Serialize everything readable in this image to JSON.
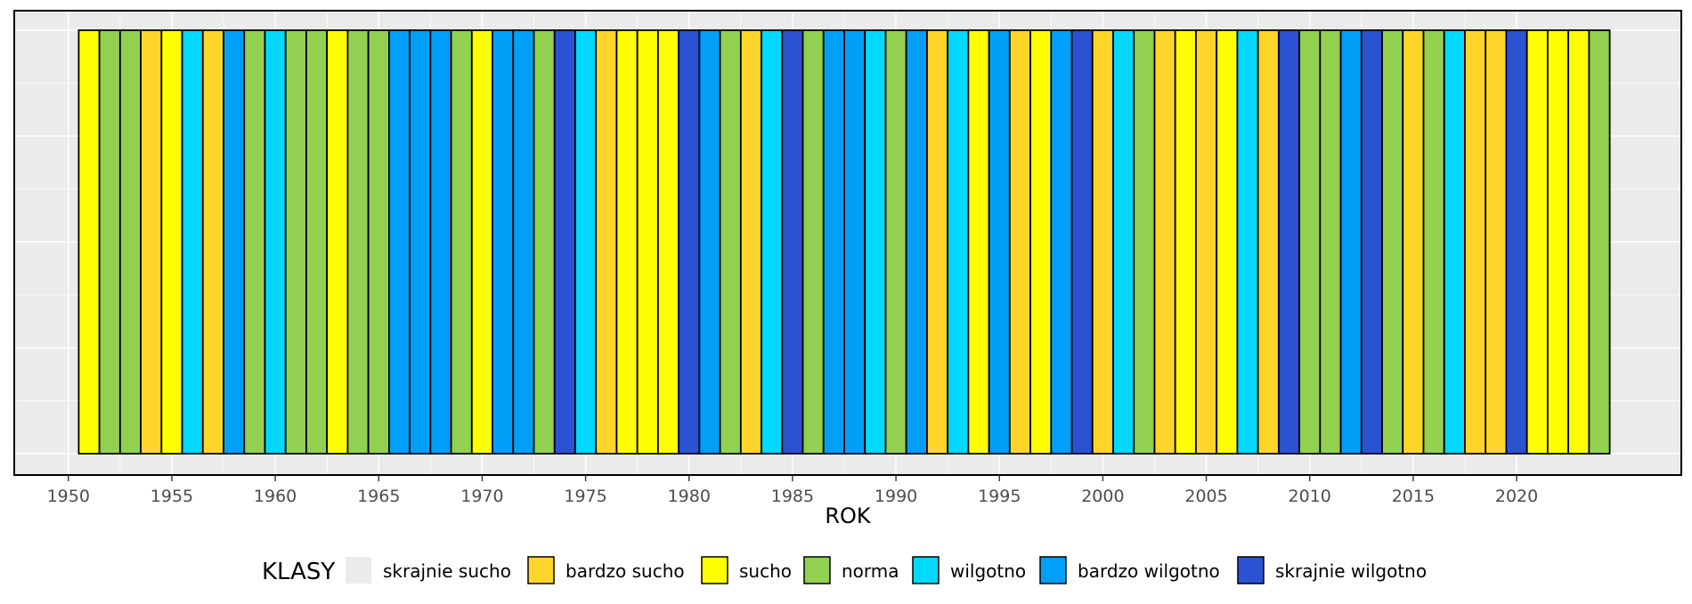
{
  "chart_data": {
    "type": "bar",
    "title": "",
    "xlabel": "ROK",
    "ylabel": "",
    "xlim": [
      1949,
      2030
    ],
    "x_ticks": [
      1950,
      1955,
      1960,
      1965,
      1970,
      1975,
      1980,
      1985,
      1990,
      1995,
      2000,
      2005,
      2010,
      2015,
      2020
    ],
    "grid": true,
    "legend_position": "bottom",
    "legend_title": "KLASY",
    "classes": [
      {
        "key": "skrajnie_sucho",
        "label": "skrajnie sucho",
        "color": "#ebebeb"
      },
      {
        "key": "bardzo_sucho",
        "label": "bardzo sucho",
        "color": "#fed528"
      },
      {
        "key": "sucho",
        "label": "sucho",
        "color": "#ffff00"
      },
      {
        "key": "norma",
        "label": "norma",
        "color": "#92d050"
      },
      {
        "key": "wilgotno",
        "label": "wilgotno",
        "color": "#00d8fe"
      },
      {
        "key": "bardzo_wilgotno",
        "label": "bardzo wilgotno",
        "color": "#00a0f8"
      },
      {
        "key": "skrajnie_wilgotno",
        "label": "skrajnie wilgotno",
        "color": "#2b52d1"
      }
    ],
    "years": [
      1951,
      1952,
      1953,
      1954,
      1955,
      1956,
      1957,
      1958,
      1959,
      1960,
      1961,
      1962,
      1963,
      1964,
      1965,
      1966,
      1967,
      1968,
      1969,
      1970,
      1971,
      1972,
      1973,
      1974,
      1975,
      1976,
      1977,
      1978,
      1979,
      1980,
      1981,
      1982,
      1983,
      1984,
      1985,
      1986,
      1987,
      1988,
      1989,
      1990,
      1991,
      1992,
      1993,
      1994,
      1995,
      1996,
      1997,
      1998,
      1999,
      2000,
      2001,
      2002,
      2003,
      2004,
      2005,
      2006,
      2007,
      2008,
      2009,
      2010,
      2011,
      2012,
      2013,
      2014,
      2015,
      2016,
      2017,
      2018,
      2019,
      2020,
      2021,
      2022,
      2023,
      2024
    ],
    "values": [
      "sucho",
      "norma",
      "norma",
      "bardzo sucho",
      "sucho",
      "wilgotno",
      "bardzo sucho",
      "bardzo wilgotno",
      "norma",
      "wilgotno",
      "norma",
      "norma",
      "sucho",
      "norma",
      "norma",
      "bardzo wilgotno",
      "bardzo wilgotno",
      "bardzo wilgotno",
      "norma",
      "sucho",
      "bardzo wilgotno",
      "bardzo wilgotno",
      "norma",
      "skrajnie wilgotno",
      "wilgotno",
      "bardzo sucho",
      "sucho",
      "sucho",
      "sucho",
      "skrajnie wilgotno",
      "bardzo wilgotno",
      "norma",
      "bardzo sucho",
      "wilgotno",
      "skrajnie wilgotno",
      "norma",
      "bardzo wilgotno",
      "bardzo wilgotno",
      "wilgotno",
      "norma",
      "bardzo wilgotno",
      "bardzo sucho",
      "wilgotno",
      "sucho",
      "bardzo wilgotno",
      "bardzo sucho",
      "sucho",
      "bardzo wilgotno",
      "skrajnie wilgotno",
      "bardzo sucho",
      "wilgotno",
      "norma",
      "bardzo sucho",
      "sucho",
      "bardzo sucho",
      "sucho",
      "wilgotno",
      "bardzo sucho",
      "skrajnie wilgotno",
      "norma",
      "norma",
      "bardzo wilgotno",
      "skrajnie wilgotno",
      "norma",
      "bardzo sucho",
      "norma",
      "wilgotno",
      "bardzo sucho",
      "bardzo sucho",
      "skrajnie wilgotno",
      "sucho",
      "sucho",
      "sucho",
      "norma"
    ]
  }
}
